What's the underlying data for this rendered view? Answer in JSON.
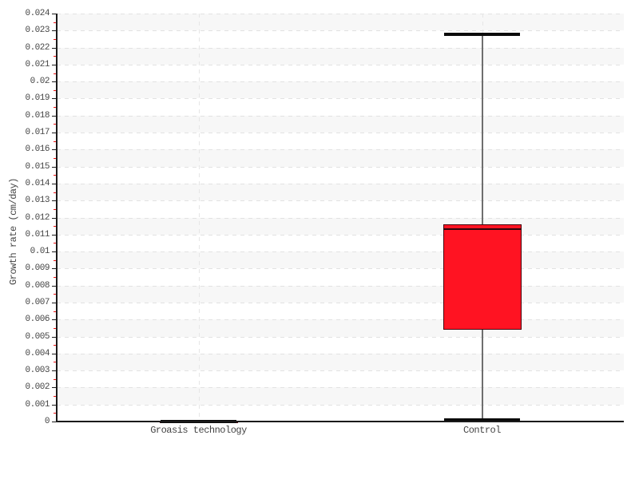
{
  "chart_data": {
    "type": "boxplot",
    "title": "",
    "ylabel": "Growth rate (cm/day)",
    "xlabel": "",
    "ylim": [
      0,
      0.024
    ],
    "ytick_step": 0.001,
    "ytick_labels": [
      "0",
      "0.001",
      "0.002",
      "0.003",
      "0.004",
      "0.005",
      "0.006",
      "0.007",
      "0.008",
      "0.009",
      "0.01",
      "0.011",
      "0.012",
      "0.013",
      "0.014",
      "0.015",
      "0.016",
      "0.017",
      "0.018",
      "0.019",
      "0.02",
      "0.021",
      "0.022",
      "0.023",
      "0.024"
    ],
    "minor_tick_interval": 0.0005,
    "categories": [
      "Groasis technology",
      "Control"
    ],
    "series": [
      {
        "name": "Groasis technology",
        "whisker_low": 0,
        "q1": 0,
        "median": 0,
        "q3": 0,
        "whisker_high": 0
      },
      {
        "name": "Control",
        "whisker_low": 0.0001,
        "q1": 0.0054,
        "median": 0.0113,
        "q3": 0.0116,
        "whisker_high": 0.0228
      }
    ],
    "legend_position": "none",
    "grid": {
      "horizontal": "dashed line every 0.001",
      "vertical": "dashed line at each category center",
      "bands": "alternating white / light-gray horizontal bands per 0.001 step"
    }
  },
  "colors": {
    "background": "#ffffff",
    "band": "#f7f7f7",
    "grid_dash": "#e2e2e2",
    "axis": "#1a1a1a",
    "tick_major": "#1a1a1a",
    "tick_minor": "#ee1111",
    "tick_label": "#444444",
    "box_fill": "#ff1322",
    "box_border": "#46050e",
    "median": "#2b040b",
    "whisker": "#6e6e6e",
    "cap": "#0a0a0a"
  }
}
